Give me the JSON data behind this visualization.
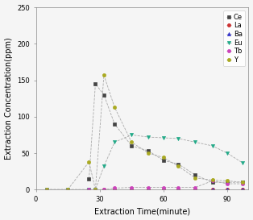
{
  "title": "",
  "xlabel": "Extraction Time(minute)",
  "ylabel": "Extraction Concentration(ppm)",
  "xlim": [
    0,
    100
  ],
  "ylim": [
    0,
    250
  ],
  "xticks": [
    0,
    30,
    60,
    90
  ],
  "yticks": [
    0,
    50,
    100,
    150,
    200,
    250
  ],
  "series": [
    {
      "label": "Ce",
      "color": "#444444",
      "marker": "s",
      "markersize": 3,
      "linestyle": "--",
      "linecolor": "#aaaaaa",
      "x": [
        25,
        28,
        32,
        37,
        45,
        53,
        60,
        67,
        75,
        83,
        90,
        97
      ],
      "y": [
        15,
        145,
        130,
        90,
        60,
        53,
        40,
        35,
        20,
        10,
        10,
        10
      ]
    },
    {
      "label": "La",
      "color": "#cc3333",
      "marker": "o",
      "markersize": 3,
      "linestyle": "--",
      "linecolor": "#aaaaaa",
      "x": [
        5,
        15,
        25,
        28,
        32,
        37,
        45,
        53,
        60,
        67,
        75,
        83,
        90,
        97
      ],
      "y": [
        0,
        0,
        0,
        0,
        0,
        0,
        0,
        0,
        0,
        0,
        0,
        0,
        0,
        0
      ]
    },
    {
      "label": "Ba",
      "color": "#3333cc",
      "marker": "^",
      "markersize": 3,
      "linestyle": "--",
      "linecolor": "#aaaaaa",
      "x": [
        5,
        15,
        25,
        28,
        32,
        37,
        45,
        53,
        60,
        67,
        75,
        83,
        90,
        97
      ],
      "y": [
        0,
        0,
        0,
        0,
        0,
        0,
        0,
        0,
        0,
        0,
        0,
        0,
        0,
        0
      ]
    },
    {
      "label": "Eu",
      "color": "#22aa88",
      "marker": "v",
      "markersize": 3,
      "linestyle": "--",
      "linecolor": "#aaaaaa",
      "x": [
        5,
        15,
        25,
        28,
        32,
        37,
        45,
        53,
        60,
        67,
        75,
        83,
        90,
        97
      ],
      "y": [
        0,
        0,
        0,
        0,
        32,
        65,
        75,
        72,
        71,
        70,
        65,
        60,
        50,
        37
      ]
    },
    {
      "label": "Tb",
      "color": "#cc44bb",
      "marker": "o",
      "markersize": 3,
      "linestyle": "--",
      "linecolor": "#aaaaaa",
      "x": [
        5,
        15,
        25,
        28,
        32,
        37,
        45,
        53,
        60,
        67,
        75,
        83,
        90,
        97
      ],
      "y": [
        0,
        0,
        0,
        0,
        0,
        2,
        3,
        3,
        3,
        3,
        3,
        12,
        8,
        8
      ]
    },
    {
      "label": "Y",
      "color": "#aaaa22",
      "marker": "o",
      "markersize": 3,
      "linestyle": "--",
      "linecolor": "#aaaaaa",
      "x": [
        5,
        15,
        25,
        28,
        32,
        37,
        45,
        53,
        60,
        67,
        75,
        83,
        90,
        97
      ],
      "y": [
        0,
        0,
        38,
        0,
        157,
        113,
        65,
        50,
        44,
        32,
        16,
        13,
        12,
        10
      ]
    }
  ],
  "legend_loc": "upper right",
  "legend_fontsize": 6,
  "tick_fontsize": 6,
  "label_fontsize": 7,
  "background_color": "#f5f5f5",
  "figsize": [
    3.14,
    2.73
  ],
  "dpi": 100
}
